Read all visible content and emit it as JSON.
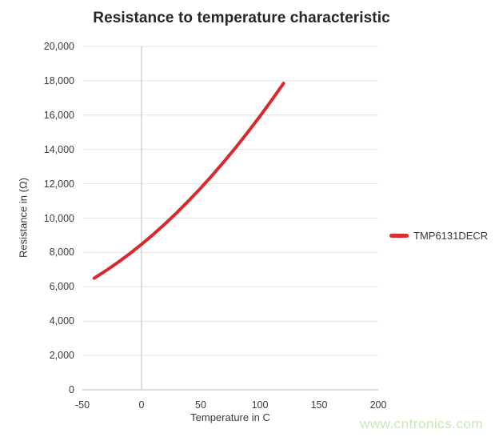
{
  "title": "Resistance to temperature characteristic",
  "watermark": "www.cntronics.com",
  "legend": {
    "label": "TMP6131DECR",
    "swatch_color": "#dd2b2e"
  },
  "colors": {
    "grid": "#dde4ea",
    "zero_line": "#c9d1d9",
    "curve": "#d9292e",
    "title_text": "#262626",
    "tick_text": "#3a3a3a",
    "watermark_text": "#c8e8b4"
  },
  "chart_data": {
    "type": "line",
    "title": "Resistance to temperature characteristic",
    "xlabel": "Temperature in C",
    "ylabel": "Resistance in (Ω)",
    "xlim": [
      -50,
      200
    ],
    "ylim": [
      0,
      20000
    ],
    "grid": true,
    "legend_position": "right",
    "x_ticks": [
      -50,
      0,
      50,
      100,
      150,
      200
    ],
    "x_tick_labels": [
      "-50",
      "0",
      "50",
      "100",
      "150",
      "200"
    ],
    "y_ticks": [
      0,
      2000,
      4000,
      6000,
      8000,
      10000,
      12000,
      14000,
      16000,
      18000,
      20000
    ],
    "y_tick_labels": [
      "0",
      "2,000",
      "4,000",
      "6,000",
      "8,000",
      "10,000",
      "12,000",
      "14,000",
      "16,000",
      "18,000",
      "20,000"
    ],
    "x_gridlines": [
      0
    ],
    "series": [
      {
        "name": "TMP6131DECR",
        "color": "#d9292e",
        "x": [
          -40,
          -30,
          -20,
          -10,
          0,
          10,
          20,
          30,
          40,
          50,
          60,
          70,
          80,
          90,
          100,
          110,
          120
        ],
        "y": [
          6500,
          6940,
          7415,
          7925,
          8475,
          9055,
          9675,
          10330,
          11025,
          11750,
          12515,
          13315,
          14150,
          15020,
          15925,
          16870,
          17850
        ]
      }
    ]
  }
}
